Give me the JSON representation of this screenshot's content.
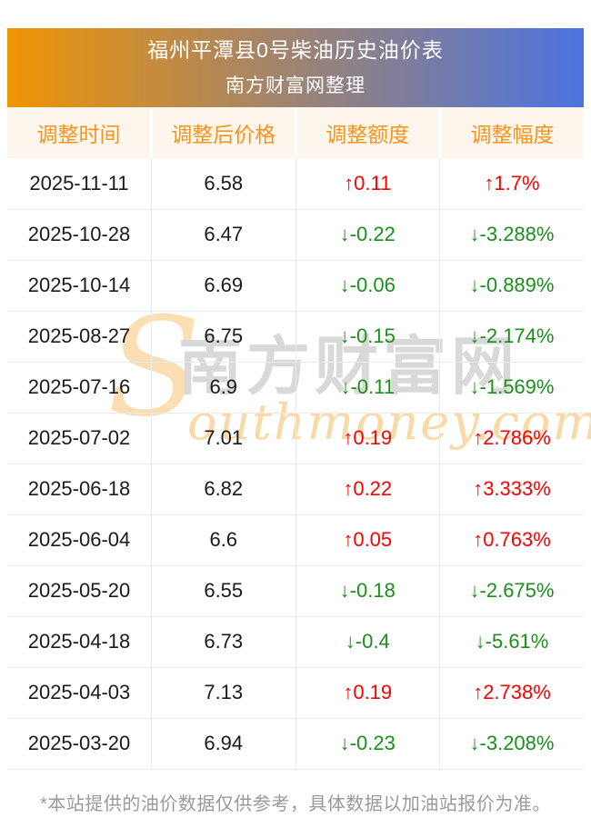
{
  "banner": {
    "title": "福州平潭县0号柴油历史油价表",
    "subtitle": "南方财富网整理"
  },
  "table": {
    "columns": [
      "调整时间",
      "调整后价格",
      "调整额度",
      "调整幅度"
    ],
    "rows": [
      {
        "date": "2025-11-11",
        "price": "6.58",
        "change": "↑0.11",
        "percent": "↑1.7%",
        "direction": "up"
      },
      {
        "date": "2025-10-28",
        "price": "6.47",
        "change": "↓-0.22",
        "percent": "↓-3.288%",
        "direction": "down"
      },
      {
        "date": "2025-10-14",
        "price": "6.69",
        "change": "↓-0.06",
        "percent": "↓-0.889%",
        "direction": "down"
      },
      {
        "date": "2025-08-27",
        "price": "6.75",
        "change": "↓-0.15",
        "percent": "↓-2.174%",
        "direction": "down"
      },
      {
        "date": "2025-07-16",
        "price": "6.9",
        "change": "↓-0.11",
        "percent": "↓-1.569%",
        "direction": "down"
      },
      {
        "date": "2025-07-02",
        "price": "7.01",
        "change": "↑0.19",
        "percent": "↑2.786%",
        "direction": "up"
      },
      {
        "date": "2025-06-18",
        "price": "6.82",
        "change": "↑0.22",
        "percent": "↑3.333%",
        "direction": "up"
      },
      {
        "date": "2025-06-04",
        "price": "6.6",
        "change": "↑0.05",
        "percent": "↑0.763%",
        "direction": "up"
      },
      {
        "date": "2025-05-20",
        "price": "6.55",
        "change": "↓-0.18",
        "percent": "↓-2.675%",
        "direction": "down"
      },
      {
        "date": "2025-04-18",
        "price": "6.73",
        "change": "↓-0.4",
        "percent": "↓-5.61%",
        "direction": "down"
      },
      {
        "date": "2025-04-03",
        "price": "7.13",
        "change": "↑0.19",
        "percent": "↑2.738%",
        "direction": "up"
      },
      {
        "date": "2025-03-20",
        "price": "6.94",
        "change": "↓-0.23",
        "percent": "↓-3.208%",
        "direction": "down"
      }
    ]
  },
  "watermark": {
    "big_s": "S",
    "cn": "南方财富网",
    "script": "outhmoney.com"
  },
  "footer": {
    "note": "*本站提供的油价数据仅供参考，具体数据以加油站报价为准。"
  },
  "colors": {
    "up_red": "#fa0000",
    "down_green": "#1a8f1a",
    "accent_orange": "#f6941d",
    "header_bg": "#fdf6ec",
    "banner_left": "#ef9406",
    "banner_right": "#4b73e0"
  }
}
